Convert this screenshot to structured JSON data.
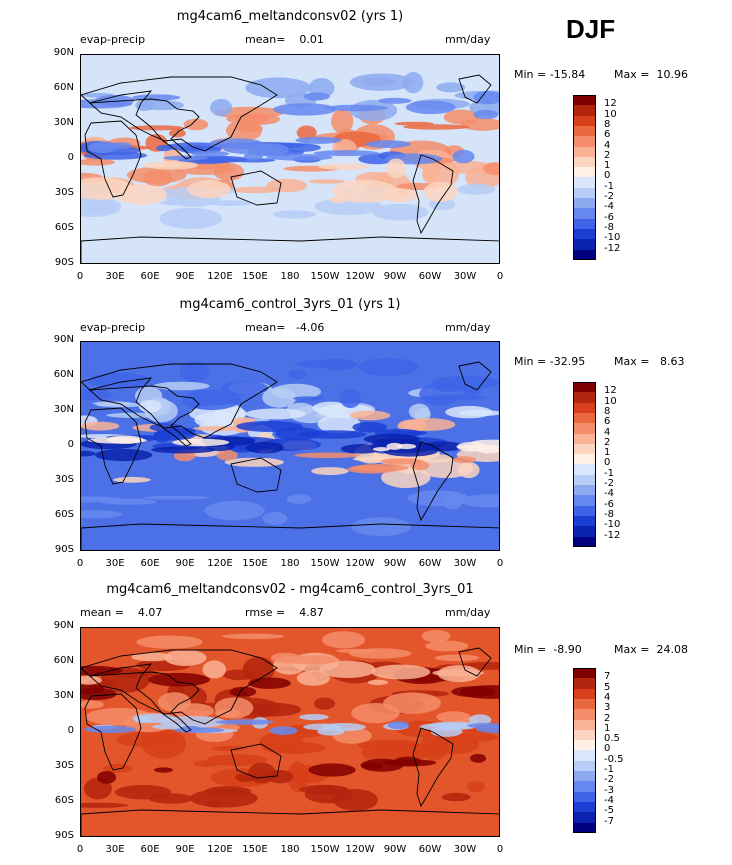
{
  "season": "DJF",
  "lat_labels": [
    "90N",
    "60N",
    "30N",
    "0",
    "30S",
    "60S",
    "90S"
  ],
  "lon_labels": [
    "0",
    "30E",
    "60E",
    "90E",
    "120E",
    "150E",
    "180",
    "150W",
    "120W",
    "90W",
    "60W",
    "30W",
    "0"
  ],
  "panels": [
    {
      "title": "mg4cam6_meltandconsv02 (yrs 1)",
      "left_label": "evap-precip",
      "center_label": "mean=    0.01",
      "right_label": "mm/day",
      "min_text": "Min = -15.84",
      "max_text": "Max =  10.96",
      "levels": [
        "12",
        "10",
        "8",
        "6",
        "4",
        "2",
        "1",
        "0",
        "-1",
        "-2",
        "-4",
        "-6",
        "-8",
        "-10",
        "-12"
      ],
      "colors": [
        "#800000",
        "#b2250e",
        "#d7401a",
        "#ea6840",
        "#f58d6a",
        "#f9b294",
        "#fcd5c0",
        "#fff0e6",
        "#d9e6fb",
        "#b6cdf5",
        "#8daaf0",
        "#6688ee",
        "#3f64e8",
        "#1c3fd3",
        "#0a22ad",
        "#000080"
      ],
      "base_color": "#d6e4fa"
    },
    {
      "title": "mg4cam6_control_3yrs_01 (yrs 1)",
      "left_label": "evap-precip",
      "center_label": "mean=   -4.06",
      "right_label": "mm/day",
      "min_text": "Min = -32.95",
      "max_text": "Max =   8.63",
      "levels": [
        "12",
        "10",
        "8",
        "6",
        "4",
        "2",
        "1",
        "0",
        "-1",
        "-2",
        "-4",
        "-6",
        "-8",
        "-10",
        "-12"
      ],
      "colors": [
        "#800000",
        "#b2250e",
        "#d7401a",
        "#ea6840",
        "#f58d6a",
        "#f9b294",
        "#fcd5c0",
        "#fff0e6",
        "#d9e6fb",
        "#b6cdf5",
        "#8daaf0",
        "#6688ee",
        "#3f64e8",
        "#1c3fd3",
        "#0a22ad",
        "#000080"
      ],
      "base_color": "#4c70e6"
    },
    {
      "title": "mg4cam6_meltandconsv02 - mg4cam6_control_3yrs_01",
      "left_label": "mean =    4.07",
      "center_label": "rmse =    4.87",
      "right_label": "mm/day",
      "min_text": "Min =  -8.90",
      "max_text": "Max =  24.08",
      "levels": [
        "7",
        "5",
        "4",
        "3",
        "2",
        "1",
        "0.5",
        "0",
        "-0.5",
        "-1",
        "-2",
        "-3",
        "-4",
        "-5",
        "-7"
      ],
      "colors": [
        "#800000",
        "#b2250e",
        "#d7401a",
        "#ea6840",
        "#f58d6a",
        "#f9b294",
        "#fcd5c0",
        "#fff0e6",
        "#d9e6fb",
        "#b6cdf5",
        "#8daaf0",
        "#6688ee",
        "#3f64e8",
        "#1c3fd3",
        "#0a22ad",
        "#000080"
      ],
      "base_color": "#e3562c"
    }
  ]
}
